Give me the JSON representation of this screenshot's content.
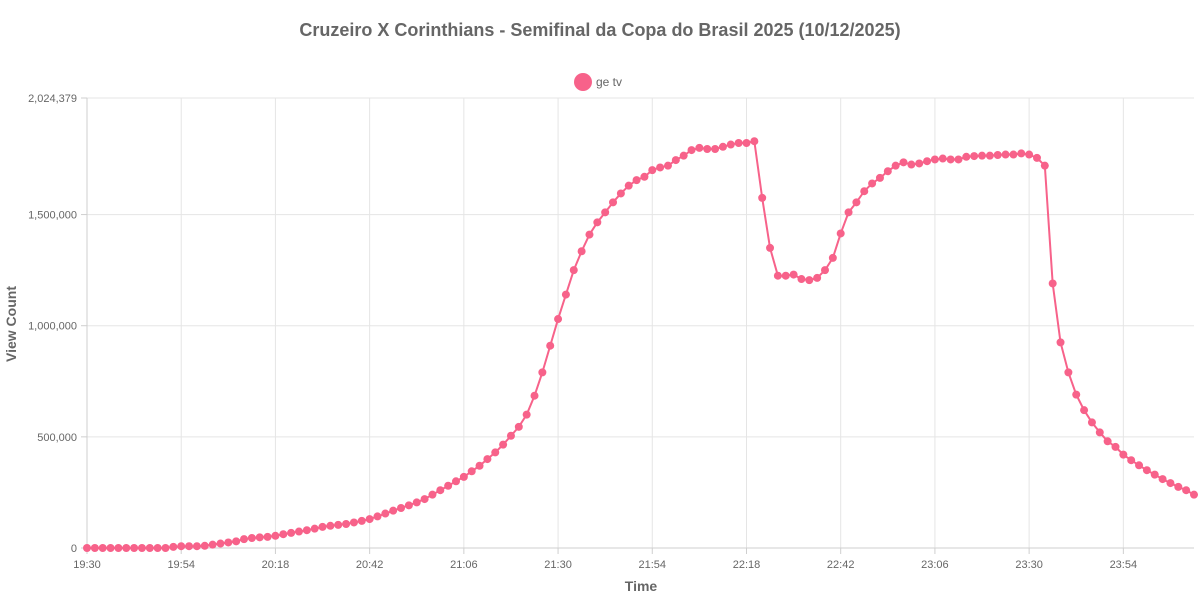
{
  "chart_data": {
    "type": "line",
    "title": "Cruzeiro X Corinthians - Semifinal da Copa do Brasil 2025 (10/12/2025)",
    "xlabel": "Time",
    "ylabel": "View Count",
    "x_tick_labels": [
      "19:30",
      "19:54",
      "20:18",
      "20:42",
      "21:06",
      "21:30",
      "21:54",
      "22:18",
      "22:42",
      "23:06",
      "23:30",
      "23:54"
    ],
    "x_range": [
      "19:30",
      "00:12"
    ],
    "y_tick_labels": [
      "0",
      "500,000",
      "1,000,000",
      "1,500,000",
      "2,024,379"
    ],
    "y_ticks": [
      0,
      500000,
      1000000,
      1500000,
      2024379
    ],
    "ylim": [
      0,
      2024379
    ],
    "grid": true,
    "legend_position": "top-center",
    "series": [
      {
        "name": "ge tv",
        "color": "#f7628a",
        "points": [
          [
            "19:30",
            0
          ],
          [
            "19:32",
            0
          ],
          [
            "19:34",
            0
          ],
          [
            "19:36",
            0
          ],
          [
            "19:38",
            0
          ],
          [
            "19:40",
            0
          ],
          [
            "19:42",
            0
          ],
          [
            "19:44",
            0
          ],
          [
            "19:46",
            0
          ],
          [
            "19:48",
            0
          ],
          [
            "19:50",
            0
          ],
          [
            "19:52",
            5000
          ],
          [
            "19:54",
            8000
          ],
          [
            "19:56",
            8000
          ],
          [
            "19:58",
            8000
          ],
          [
            "20:00",
            10000
          ],
          [
            "20:02",
            15000
          ],
          [
            "20:04",
            20000
          ],
          [
            "20:06",
            25000
          ],
          [
            "20:08",
            30000
          ],
          [
            "20:10",
            40000
          ],
          [
            "20:12",
            45000
          ],
          [
            "20:14",
            48000
          ],
          [
            "20:16",
            50000
          ],
          [
            "20:18",
            55000
          ],
          [
            "20:20",
            62000
          ],
          [
            "20:22",
            68000
          ],
          [
            "20:24",
            74000
          ],
          [
            "20:26",
            80000
          ],
          [
            "20:28",
            87000
          ],
          [
            "20:30",
            95000
          ],
          [
            "20:32",
            100000
          ],
          [
            "20:34",
            104000
          ],
          [
            "20:36",
            108000
          ],
          [
            "20:38",
            115000
          ],
          [
            "20:40",
            122000
          ],
          [
            "20:42",
            130000
          ],
          [
            "20:44",
            142000
          ],
          [
            "20:46",
            155000
          ],
          [
            "20:48",
            168000
          ],
          [
            "20:50",
            180000
          ],
          [
            "20:52",
            192000
          ],
          [
            "20:54",
            205000
          ],
          [
            "20:56",
            220000
          ],
          [
            "20:58",
            240000
          ],
          [
            "21:00",
            260000
          ],
          [
            "21:02",
            280000
          ],
          [
            "21:04",
            300000
          ],
          [
            "21:06",
            320000
          ],
          [
            "21:08",
            345000
          ],
          [
            "21:10",
            370000
          ],
          [
            "21:12",
            400000
          ],
          [
            "21:14",
            430000
          ],
          [
            "21:16",
            465000
          ],
          [
            "21:18",
            505000
          ],
          [
            "21:20",
            545000
          ],
          [
            "21:22",
            600000
          ],
          [
            "21:24",
            685000
          ],
          [
            "21:26",
            790000
          ],
          [
            "21:28",
            910000
          ],
          [
            "21:30",
            1030000
          ],
          [
            "21:32",
            1140000
          ],
          [
            "21:34",
            1250000
          ],
          [
            "21:36",
            1335000
          ],
          [
            "21:38",
            1410000
          ],
          [
            "21:40",
            1465000
          ],
          [
            "21:42",
            1510000
          ],
          [
            "21:44",
            1555000
          ],
          [
            "21:46",
            1595000
          ],
          [
            "21:48",
            1630000
          ],
          [
            "21:50",
            1655000
          ],
          [
            "21:52",
            1670000
          ],
          [
            "21:54",
            1700000
          ],
          [
            "21:56",
            1712000
          ],
          [
            "21:58",
            1720000
          ],
          [
            "22:00",
            1745000
          ],
          [
            "22:02",
            1765000
          ],
          [
            "22:04",
            1790000
          ],
          [
            "22:06",
            1800000
          ],
          [
            "22:08",
            1795000
          ],
          [
            "22:10",
            1795000
          ],
          [
            "22:12",
            1805000
          ],
          [
            "22:14",
            1815000
          ],
          [
            "22:16",
            1822000
          ],
          [
            "22:18",
            1822000
          ],
          [
            "22:20",
            1830000
          ],
          [
            "22:22",
            1575000
          ],
          [
            "22:24",
            1350000
          ],
          [
            "22:26",
            1225000
          ],
          [
            "22:28",
            1225000
          ],
          [
            "22:30",
            1230000
          ],
          [
            "22:32",
            1210000
          ],
          [
            "22:34",
            1205000
          ],
          [
            "22:36",
            1215000
          ],
          [
            "22:38",
            1250000
          ],
          [
            "22:40",
            1305000
          ],
          [
            "22:42",
            1415000
          ],
          [
            "22:44",
            1510000
          ],
          [
            "22:46",
            1555000
          ],
          [
            "22:48",
            1605000
          ],
          [
            "22:50",
            1640000
          ],
          [
            "22:52",
            1665000
          ],
          [
            "22:54",
            1695000
          ],
          [
            "22:56",
            1720000
          ],
          [
            "22:58",
            1735000
          ],
          [
            "23:00",
            1725000
          ],
          [
            "23:02",
            1730000
          ],
          [
            "23:04",
            1740000
          ],
          [
            "23:06",
            1748000
          ],
          [
            "23:08",
            1752000
          ],
          [
            "23:10",
            1748000
          ],
          [
            "23:12",
            1748000
          ],
          [
            "23:14",
            1760000
          ],
          [
            "23:16",
            1763000
          ],
          [
            "23:18",
            1765000
          ],
          [
            "23:20",
            1765000
          ],
          [
            "23:22",
            1768000
          ],
          [
            "23:24",
            1770000
          ],
          [
            "23:26",
            1770000
          ],
          [
            "23:28",
            1775000
          ],
          [
            "23:30",
            1770000
          ],
          [
            "23:32",
            1755000
          ],
          [
            "23:34",
            1720000
          ],
          [
            "23:36",
            1190000
          ],
          [
            "23:38",
            925000
          ],
          [
            "23:40",
            790000
          ],
          [
            "23:42",
            690000
          ],
          [
            "23:44",
            620000
          ],
          [
            "23:46",
            565000
          ],
          [
            "23:48",
            520000
          ],
          [
            "23:50",
            480000
          ],
          [
            "23:52",
            455000
          ],
          [
            "23:54",
            420000
          ],
          [
            "23:56",
            395000
          ],
          [
            "23:58",
            372000
          ],
          [
            "00:00",
            350000
          ],
          [
            "00:02",
            330000
          ],
          [
            "00:04",
            310000
          ],
          [
            "00:06",
            292000
          ],
          [
            "00:08",
            275000
          ],
          [
            "00:10",
            260000
          ],
          [
            "00:12",
            240000
          ]
        ]
      }
    ]
  }
}
